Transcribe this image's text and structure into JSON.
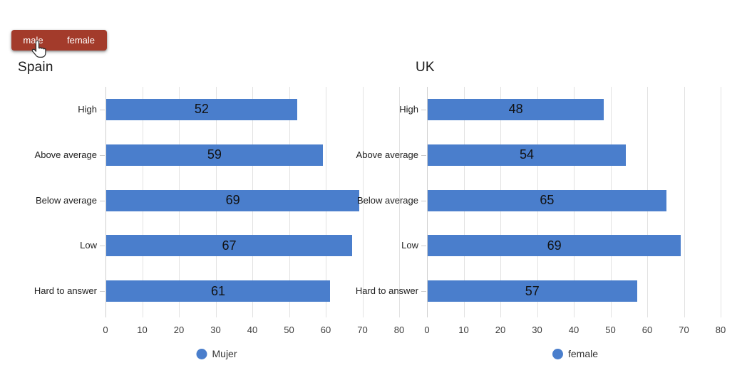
{
  "toggle": {
    "male_label": "male",
    "female_label": "female",
    "color": "#a33b2b"
  },
  "colors": {
    "bar": "#4a7ecc",
    "gridline": "#e2e2e2",
    "axis_zero_line": "#cfcfcf"
  },
  "chart_data": [
    {
      "type": "bar",
      "orientation": "horizontal",
      "title": "Spain",
      "categories": [
        "High",
        "Above average",
        "Below average",
        "Low",
        "Hard to answer"
      ],
      "values": [
        52,
        59,
        69,
        67,
        61
      ],
      "x_ticks": [
        0,
        10,
        20,
        30,
        40,
        50,
        60,
        70,
        80
      ],
      "xlim": [
        0,
        80
      ],
      "grid": true,
      "legend": "Mujer",
      "legend_position": "bottom",
      "series_color": "#4a7ecc"
    },
    {
      "type": "bar",
      "orientation": "horizontal",
      "title": "UK",
      "categories": [
        "High",
        "Above average",
        "Below average",
        "Low",
        "Hard to answer"
      ],
      "values": [
        48,
        54,
        65,
        69,
        57
      ],
      "x_ticks": [
        0,
        10,
        20,
        30,
        40,
        50,
        60,
        70,
        80
      ],
      "xlim": [
        0,
        80
      ],
      "grid": true,
      "legend": "female",
      "legend_position": "bottom",
      "series_color": "#4a7ecc"
    }
  ]
}
